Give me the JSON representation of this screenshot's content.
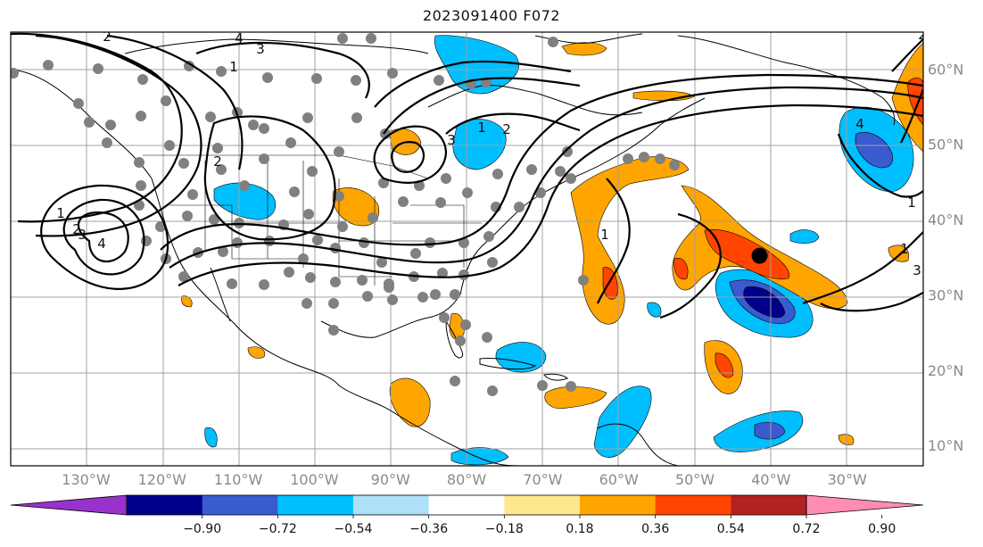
{
  "title": "2023091400 F072",
  "map": {
    "lon_labels": [
      "130°W",
      "120°W",
      "110°W",
      "100°W",
      "90°W",
      "80°W",
      "70°W",
      "60°W",
      "50°W",
      "40°W",
      "30°W"
    ],
    "lat_labels": [
      "60°N",
      "50°N",
      "40°N",
      "30°N",
      "20°N",
      "10°N"
    ],
    "contour_labels": [
      "2",
      "1",
      "3",
      "4",
      "4",
      "2",
      "3",
      "1",
      "2",
      "4",
      "2",
      "1",
      "3",
      "1",
      "1",
      "1",
      "2",
      "3"
    ],
    "marker": {
      "lon": -41.5,
      "lat": 35.2,
      "color": "#000000"
    },
    "station_color": "#808080"
  },
  "colorbar": {
    "ticks": [
      "−0.90",
      "−0.72",
      "−0.54",
      "−0.36",
      "−0.18",
      "0.18",
      "0.36",
      "0.54",
      "0.72",
      "0.90"
    ],
    "colors": [
      "#9932cc",
      "#00008b",
      "#3a5bd0",
      "#00bfff",
      "#b0e0f8",
      "#ffffff",
      "#ffe88c",
      "#ffa500",
      "#ff4500",
      "#b22222",
      "#ff8cb4"
    ]
  }
}
